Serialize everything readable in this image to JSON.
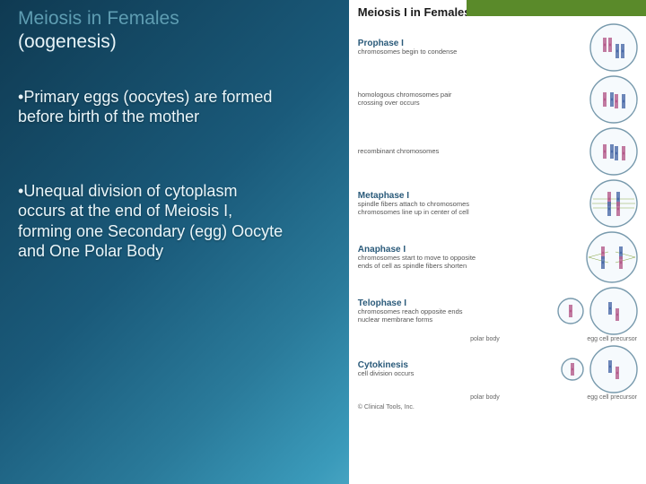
{
  "accent_color": "#5a8a2a",
  "slide": {
    "title_line1": "Meiosis in Females",
    "title_line2": "(oogenesis)",
    "bullets": [
      "Primary eggs (oocytes) are formed before birth of the mother",
      "Unequal division of cytoplasm occurs at the end of Meiosis I, forming one Secondary (egg) Oocyte and One Polar Body"
    ]
  },
  "diagram": {
    "title": "Meiosis I in Females",
    "copyright": "© Clinical Tools, Inc.",
    "cell_stroke": "#789aad",
    "cell_fill": "#f6fafd",
    "chrom_colors": {
      "paternal": "#b45a8a",
      "maternal": "#4a6aa8"
    },
    "spindle_color": "#8aa84a",
    "phases": [
      {
        "name": "Prophase I",
        "desc": "chromosomes begin to condense",
        "cells": 1,
        "content": "condense",
        "r": 26
      },
      {
        "name": "",
        "desc": "homologous chromosomes pair\ncrossing over occurs",
        "cells": 1,
        "content": "pairing",
        "r": 26
      },
      {
        "name": "",
        "desc": "recombinant chromosomes",
        "cells": 1,
        "content": "recombinant",
        "r": 26
      },
      {
        "name": "Metaphase I",
        "desc": "spindle fibers attach to chromosomes\nchromosomes line up in center of cell",
        "cells": 1,
        "content": "metaphase",
        "r": 26
      },
      {
        "name": "Anaphase I",
        "desc": "chromosomes start to move to opposite\nends of cell as spindle fibers shorten",
        "cells": 1,
        "content": "anaphase",
        "r": 28
      },
      {
        "name": "Telophase I",
        "desc": "chromosomes reach opposite ends\nnuclear membrane forms",
        "cells": 2,
        "content": "telophase",
        "r1": 14,
        "r2": 26,
        "label1": "polar body",
        "label2": "egg cell precursor"
      },
      {
        "name": "Cytokinesis",
        "desc": "cell division occurs",
        "cells": 2,
        "content": "cytokinesis",
        "r1": 12,
        "r2": 26,
        "label1": "polar body",
        "label2": "egg cell precursor"
      }
    ]
  }
}
